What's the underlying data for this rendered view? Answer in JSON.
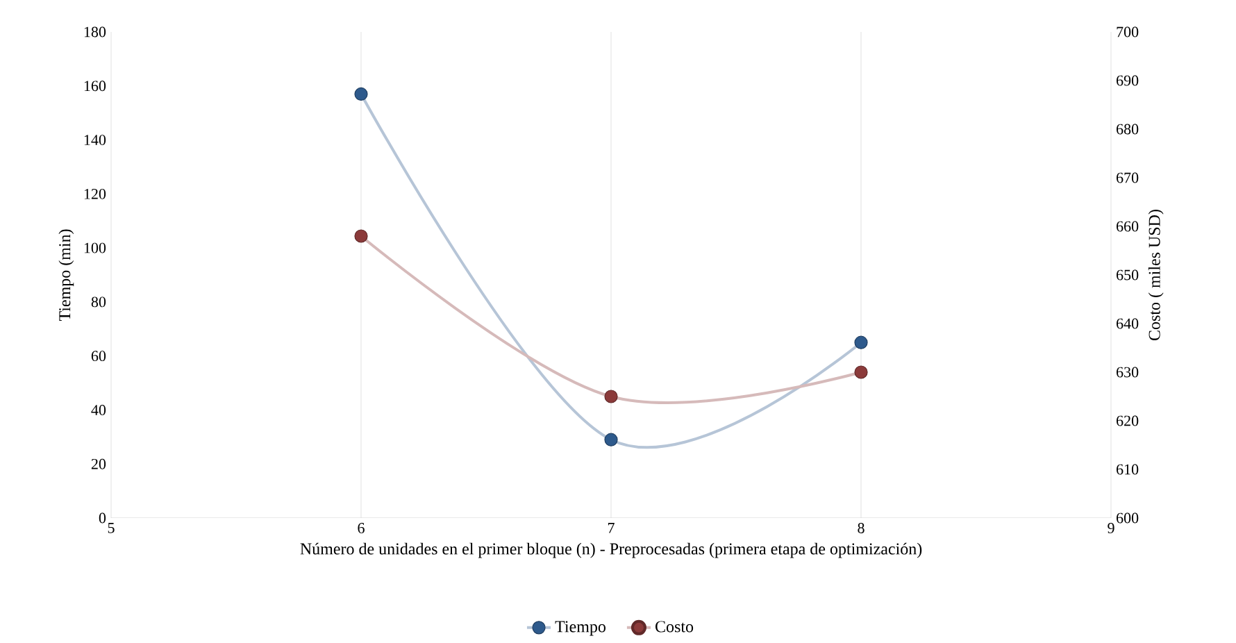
{
  "chart_data": {
    "type": "line",
    "xlabel": "Número  de unidades en el primer bloque (n) - Preprocesadas (primera  etapa de optimización)",
    "ylabel": "Tiempo (min)",
    "y2label": "Costo ( miles USD)",
    "x": [
      6,
      7,
      8
    ],
    "series": [
      {
        "name": "Tiempo",
        "color": "#2e5a8c",
        "values": [
          157,
          29,
          65
        ]
      },
      {
        "name": "Costo",
        "color": "#8b3a3a",
        "values": [
          658,
          625,
          630
        ],
        "axis": "y2"
      }
    ],
    "xlim": [
      5,
      9
    ],
    "xticks": [
      5,
      6,
      7,
      8,
      9
    ],
    "ylim": [
      0,
      180
    ],
    "yticks": [
      0,
      20,
      40,
      60,
      80,
      100,
      120,
      140,
      160,
      180
    ],
    "y2lim": [
      600,
      700
    ],
    "y2ticks": [
      600,
      610,
      620,
      630,
      640,
      650,
      660,
      670,
      680,
      690,
      700
    ],
    "grid": "x",
    "legend": "bottom",
    "marker": "circle",
    "line_style": "solid"
  }
}
